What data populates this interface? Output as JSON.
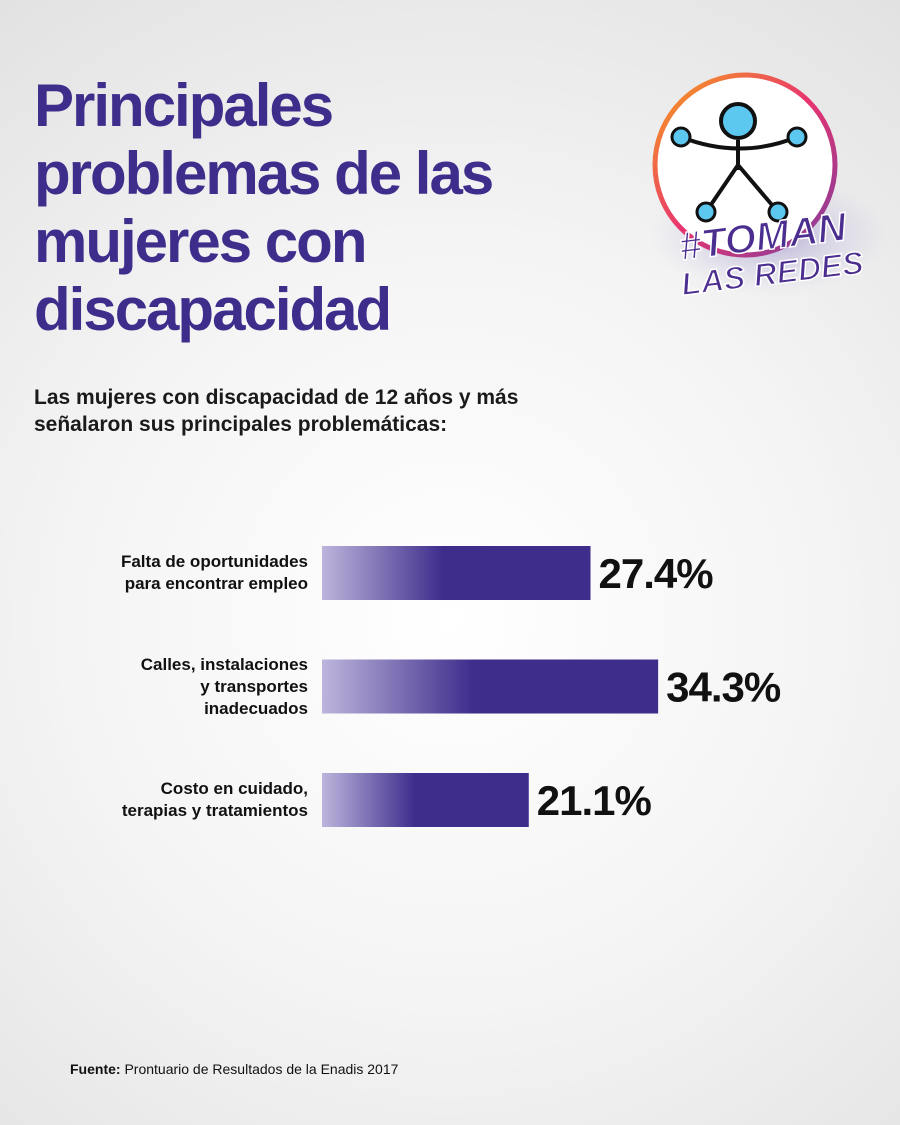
{
  "chart_data": {
    "type": "bar",
    "orientation": "horizontal",
    "title": "Principales problemas de las mujeres con discapacidad",
    "subtitle": "Las mujeres con discapacidad de 12 años y más señalaron sus principales problemáticas:",
    "categories": [
      "Falta de oportunidades\npara encontrar empleo",
      "Calles, instalaciones\ny transportes\ninadecuados",
      "Costo en cuidado,\nterapias y tratamientos"
    ],
    "values": [
      27.4,
      34.3,
      21.1
    ],
    "value_labels": [
      "27.4%",
      "34.3%",
      "21.1%"
    ],
    "color": "#3f2d8c",
    "source": {
      "label": "Fuente:",
      "text": "Prontuario de Resultados de la Enadis 2017"
    }
  },
  "logo": {
    "line1": "#TOMAN",
    "line2": "LAS REDES"
  }
}
